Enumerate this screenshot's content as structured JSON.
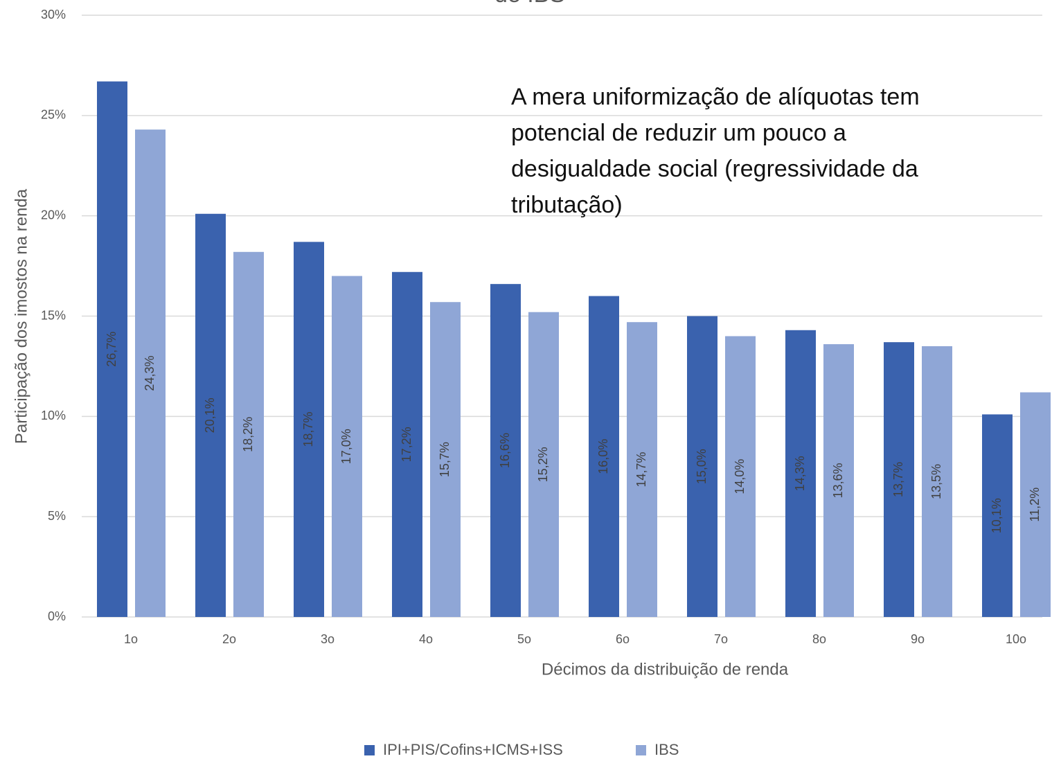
{
  "chart_data": {
    "type": "bar",
    "title": "de IBS",
    "annotation": [
      "A mera uniformização de alíquotas tem",
      "potencial de reduzir um pouco a",
      "desigualdade social (regressividade da",
      "tributação)"
    ],
    "xlabel": "Décimos da distribuição de renda",
    "ylabel": "Participação dos imostos na renda",
    "categories": [
      "1o",
      "2o",
      "3o",
      "4o",
      "5o",
      "6o",
      "7o",
      "8o",
      "9o",
      "10o"
    ],
    "series": [
      {
        "name": "IPI+PIS/Cofins+ICMS+ISS",
        "color": "#3a62ae",
        "values": [
          26.7,
          20.1,
          18.7,
          17.2,
          16.6,
          16.0,
          15.0,
          14.3,
          13.7,
          10.1
        ],
        "value_labels": [
          "26,7%",
          "20,1%",
          "18,7%",
          "17,2%",
          "16,6%",
          "16,0%",
          "15,0%",
          "14,3%",
          "13,7%",
          "10,1%"
        ]
      },
      {
        "name": "IBS",
        "color": "#8fa6d6",
        "values": [
          24.3,
          18.2,
          17.0,
          15.7,
          15.2,
          14.7,
          14.0,
          13.6,
          13.5,
          11.2
        ],
        "value_labels": [
          "24,3%",
          "18,2%",
          "17,0%",
          "15,7%",
          "15,2%",
          "14,7%",
          "14,0%",
          "13,6%",
          "13,5%",
          "11,2%"
        ]
      }
    ],
    "ylim": [
      0,
      30
    ],
    "yticks": [
      {
        "value": 0,
        "label": "0%"
      },
      {
        "value": 5,
        "label": "5%"
      },
      {
        "value": 10,
        "label": "10%"
      },
      {
        "value": 15,
        "label": "15%"
      },
      {
        "value": 20,
        "label": "20%"
      },
      {
        "value": 25,
        "label": "25%"
      },
      {
        "value": 30,
        "label": "30%"
      }
    ],
    "grid": true,
    "legend": "bottom"
  }
}
